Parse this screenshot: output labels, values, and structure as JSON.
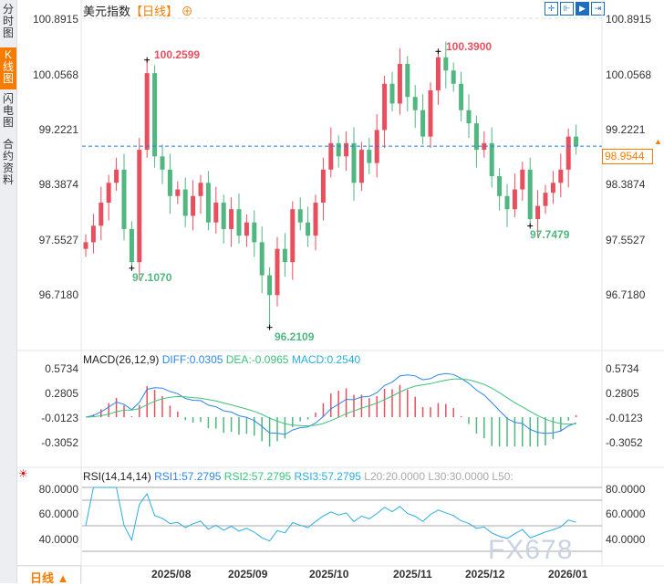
{
  "sidebar": {
    "tabs": [
      {
        "label": "分时图"
      },
      {
        "label": "K线图",
        "active": true
      },
      {
        "label": "闪电图"
      },
      {
        "label": "合约资料"
      }
    ]
  },
  "header": {
    "title": "美元指数",
    "period": "【日线】",
    "add_icon": "plus-circle-icon"
  },
  "toolbar": {
    "icons": [
      "crosshair-icon",
      "range-icon",
      "cursor-icon",
      "exit-icon"
    ]
  },
  "colors": {
    "up": "#e84f5e",
    "down": "#4fb77f",
    "accent": "#f57c00",
    "diff": "#2f86e8",
    "dea": "#3cc27a",
    "rsi": "#29aee0"
  },
  "price_axis": {
    "ticks": [
      "100.8915",
      "100.0568",
      "99.2221",
      "98.3874",
      "97.5527",
      "96.7180"
    ],
    "current": "98.9544"
  },
  "annotations": {
    "high1": "100.2599",
    "high2": "100.3900",
    "low1": "97.1070",
    "low2": "96.2109",
    "low3": "97.7479"
  },
  "macd": {
    "title": "MACD(26,12,9)",
    "diff": "DIFF:0.0305",
    "dea": "DEA:-0.0965",
    "macd": "MACD:0.2540",
    "ticks": [
      "0.5734",
      "0.2805",
      "-0.0123",
      "-0.3052"
    ]
  },
  "rsi": {
    "title": "RSI(14,14,14)",
    "rsi1": "RSI1:57.2795",
    "rsi2": "RSI2:57.2795",
    "rsi3": "RSI3:57.2795",
    "l20": "L20:20.0000",
    "l30": "L30:30.0000",
    "l50": "L50:",
    "ticks": [
      "80.0000",
      "60.0000",
      "40.0000"
    ]
  },
  "x_axis": {
    "labels": [
      "2025/08",
      "2025/09",
      "2025/10",
      "2025/11",
      "2025/12",
      "2026/01"
    ]
  },
  "footer": {
    "period": "日线 ▲"
  },
  "watermark": "FX678",
  "chart_data": {
    "type": "candlestick",
    "closes": [
      97.5,
      97.75,
      98.1,
      98.4,
      98.6,
      97.7,
      97.2,
      98.9,
      100.06,
      98.8,
      98.6,
      98.2,
      98.3,
      97.9,
      98.2,
      98.4,
      97.8,
      98.1,
      97.7,
      98.0,
      97.6,
      97.8,
      97.5,
      97.0,
      96.7,
      97.4,
      97.2,
      98.0,
      97.8,
      97.6,
      98.1,
      98.6,
      99.0,
      98.8,
      99.0,
      98.4,
      98.9,
      98.7,
      99.2,
      99.9,
      99.6,
      100.2,
      99.7,
      99.5,
      99.1,
      99.8,
      100.3,
      100.1,
      99.9,
      99.5,
      99.3,
      98.9,
      99.0,
      98.5,
      98.2,
      98.0,
      98.3,
      98.6,
      97.85,
      98.05,
      98.25,
      98.4,
      98.6,
      99.1,
      98.95
    ],
    "ylim": [
      96.0,
      101.0
    ]
  }
}
